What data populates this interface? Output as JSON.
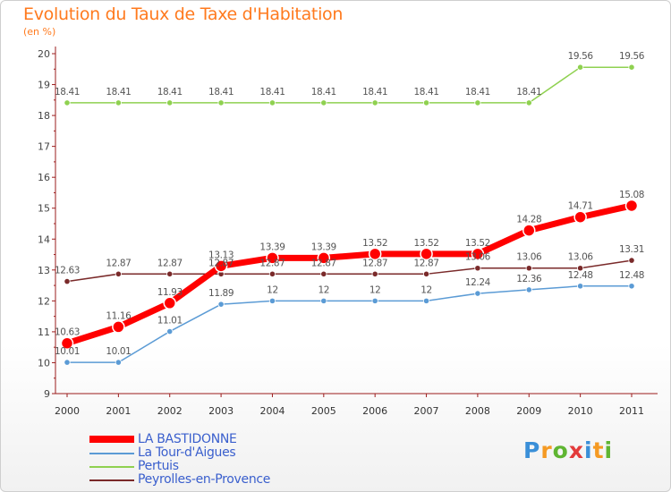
{
  "chart_data": {
    "type": "line",
    "title": "Evolution du Taux de Taxe d'Habitation",
    "subtitle": "(en %)",
    "xlabel": "",
    "ylabel": "",
    "categories": [
      "2000",
      "2001",
      "2002",
      "2003",
      "2004",
      "2005",
      "2006",
      "2007",
      "2008",
      "2009",
      "2010",
      "2011"
    ],
    "ylim": [
      9,
      20
    ],
    "yticks": [
      "9",
      "10",
      "11",
      "12",
      "13",
      "14",
      "15",
      "16",
      "17",
      "18",
      "19",
      "20"
    ],
    "grid": false,
    "series": [
      {
        "name": "Pertuis",
        "color": "#8fd150",
        "values": [
          18.41,
          18.41,
          18.41,
          18.41,
          18.41,
          18.41,
          18.41,
          18.41,
          18.41,
          18.41,
          19.56,
          19.56
        ],
        "labels": [
          "18.41",
          "18.41",
          "18.41",
          "18.41",
          "18.41",
          "18.41",
          "18.41",
          "18.41",
          "18.41",
          "18.41",
          "19.56",
          "19.56"
        ]
      },
      {
        "name": "La Tour-d'Aigues",
        "color": "#5b9bd5",
        "values": [
          10.01,
          10.01,
          11.01,
          11.89,
          12,
          12,
          12,
          12,
          12.24,
          12.36,
          12.48,
          12.48
        ],
        "labels": [
          "10.01",
          "10.01",
          "11.01",
          "11.89",
          "12",
          "12",
          "12",
          "12",
          "12.24",
          "12.36",
          "12.48",
          "12.48"
        ]
      },
      {
        "name": "Peyrolles-en-Provence",
        "color": "#7a2a2a",
        "values": [
          12.63,
          12.87,
          12.87,
          12.87,
          12.87,
          12.87,
          12.87,
          12.87,
          13.06,
          13.06,
          13.06,
          13.31
        ],
        "labels": [
          "12.63",
          "12.87",
          "12.87",
          "12.87",
          "12.87",
          "12.87",
          "12.87",
          "12.87",
          "13.06",
          "13.06",
          "13.06",
          "13.31"
        ]
      },
      {
        "name": "LA BASTIDONNE",
        "color": "#ff0000",
        "values": [
          10.63,
          11.16,
          11.93,
          13.13,
          13.39,
          13.39,
          13.52,
          13.52,
          13.52,
          14.28,
          14.71,
          15.08
        ],
        "labels": [
          "10.63",
          "11.16",
          "11.93",
          "13.13",
          "13.39",
          "13.39",
          "13.52",
          "13.52",
          "13.52",
          "14.28",
          "14.71",
          "15.08"
        ]
      }
    ],
    "legend": {
      "position": "bottom-left",
      "items": [
        {
          "label": "LA BASTIDONNE",
          "color": "#ff0000"
        },
        {
          "label": "La Tour-d'Aigues",
          "color": "#5b9bd5"
        },
        {
          "label": "Pertuis",
          "color": "#8fd150"
        },
        {
          "label": "Peyrolles-en-Provence",
          "color": "#7a2a2a"
        }
      ]
    }
  },
  "branding": {
    "logo_letters": [
      "P",
      "r",
      "o",
      "x",
      "i",
      "t",
      "i"
    ],
    "logo_colors": [
      "#3a8fd8",
      "#f59a23",
      "#5fb532",
      "#e33b3b",
      "#3a8fd8",
      "#f59a23",
      "#5fb532"
    ]
  }
}
